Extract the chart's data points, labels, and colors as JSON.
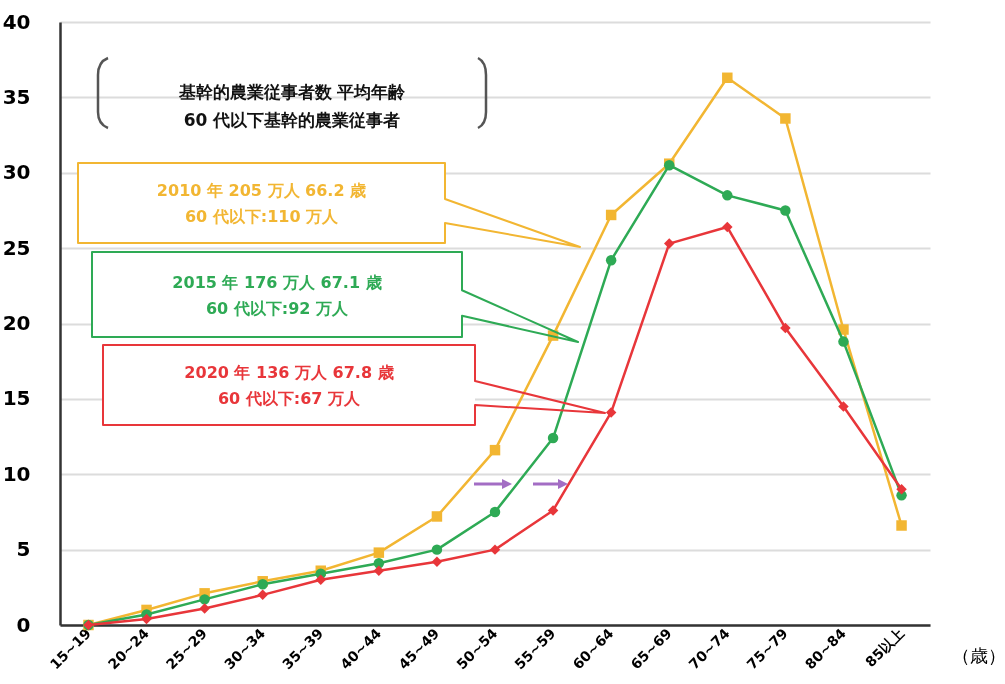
{
  "chart_data": {
    "type": "line",
    "legend_title": "基幹的農業従事者数  平均年齢\n60 代以下基幹的農業従事者",
    "xlabel": "（歳）",
    "categories": [
      "15~19",
      "20~24",
      "25~29",
      "30~34",
      "35~39",
      "40~44",
      "45~49",
      "50~54",
      "55~59",
      "60~64",
      "65~69",
      "70~74",
      "75~79",
      "80~84",
      "85以上"
    ],
    "series": [
      {
        "name": "2010 年  205 万人  66.2 歳\n60 代以下:110 万人",
        "color": "#f2b632",
        "marker": "square",
        "values": [
          0,
          1.0,
          2.1,
          2.9,
          3.6,
          4.8,
          7.2,
          11.6,
          19.2,
          27.2,
          30.6,
          36.3,
          33.6,
          19.6,
          6.6
        ]
      },
      {
        "name": "2015 年  176 万人  67.1 歳\n60 代以下:92 万人",
        "color": "#2eaa55",
        "marker": "circle",
        "values": [
          0,
          0.7,
          1.7,
          2.7,
          3.4,
          4.1,
          5.0,
          7.5,
          12.4,
          24.2,
          30.5,
          28.5,
          27.5,
          18.8,
          8.6
        ]
      },
      {
        "name": "2020 年  136 万人  67.8 歳\n60 代以下:67 万人",
        "color": "#e8363a",
        "marker": "diamond",
        "values": [
          0,
          0.4,
          1.1,
          2.0,
          3.0,
          3.6,
          4.2,
          5.0,
          7.6,
          14.1,
          25.3,
          26.4,
          19.7,
          14.5,
          9.0
        ]
      }
    ],
    "ylim": [
      0,
      40
    ],
    "yticks": [
      0,
      5,
      10,
      15,
      20,
      25,
      30,
      35,
      40
    ],
    "grid": "y",
    "legend": "left",
    "line_style": "solid"
  }
}
